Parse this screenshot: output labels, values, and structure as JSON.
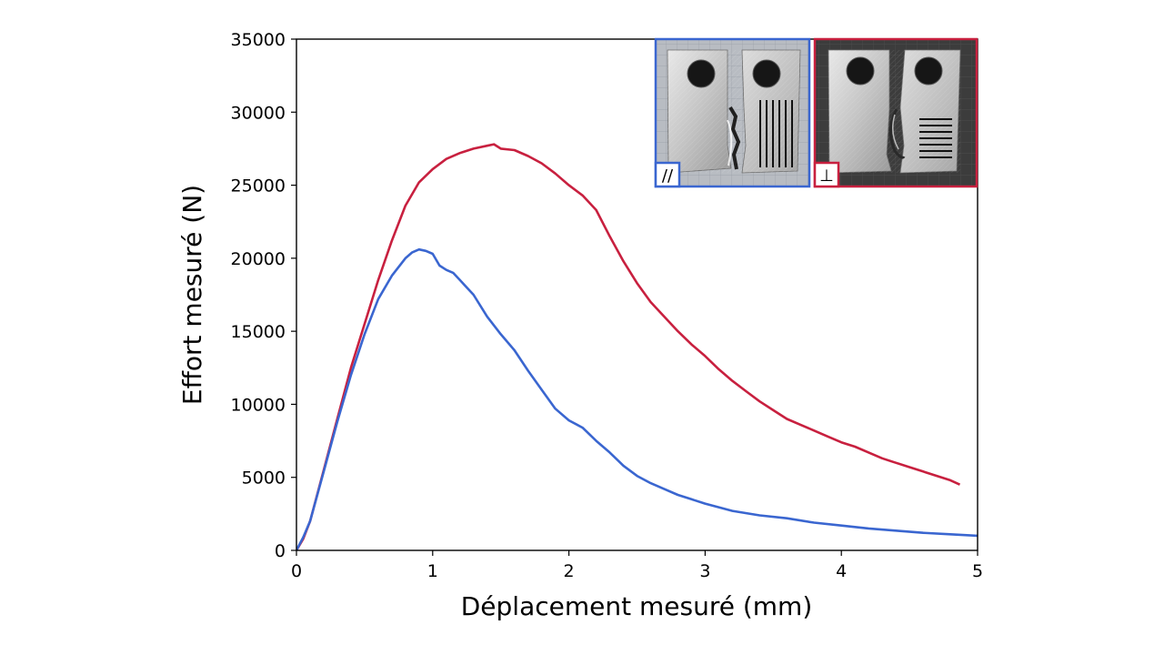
{
  "chart_data": {
    "type": "line",
    "xlabel": "Déplacement mesuré (mm)",
    "ylabel": "Effort mesuré (N)",
    "xlim": [
      0,
      5
    ],
    "ylim": [
      0,
      35000
    ],
    "x_ticks": [
      "0",
      "1",
      "2",
      "3",
      "4",
      "5"
    ],
    "y_ticks": [
      "0",
      "5000",
      "10000",
      "15000",
      "20000",
      "25000",
      "30000",
      "35000"
    ],
    "grid": false,
    "series": [
      {
        "color": "#c8203f",
        "x": [
          0,
          0.05,
          0.1,
          0.2,
          0.3,
          0.4,
          0.5,
          0.6,
          0.7,
          0.8,
          0.9,
          1.0,
          1.1,
          1.2,
          1.3,
          1.4,
          1.45,
          1.5,
          1.6,
          1.7,
          1.8,
          1.9,
          2.0,
          2.1,
          2.2,
          2.3,
          2.4,
          2.5,
          2.6,
          2.7,
          2.8,
          2.9,
          3.0,
          3.1,
          3.2,
          3.3,
          3.4,
          3.5,
          3.6,
          3.7,
          3.8,
          3.9,
          4.0,
          4.1,
          4.2,
          4.3,
          4.4,
          4.5,
          4.6,
          4.7,
          4.8,
          4.87
        ],
        "y": [
          0,
          800,
          2000,
          5500,
          9000,
          12500,
          15500,
          18500,
          21200,
          23600,
          25200,
          26100,
          26800,
          27200,
          27500,
          27700,
          27800,
          27500,
          27400,
          27000,
          26500,
          25800,
          25000,
          24300,
          23300,
          21500,
          19800,
          18300,
          17000,
          16000,
          15000,
          14100,
          13300,
          12400,
          11600,
          10900,
          10200,
          9600,
          9000,
          8600,
          8200,
          7800,
          7400,
          7100,
          6700,
          6300,
          6000,
          5700,
          5400,
          5100,
          4800,
          4500
        ]
      },
      {
        "color": "#3a66d0",
        "x": [
          0,
          0.05,
          0.1,
          0.2,
          0.3,
          0.4,
          0.5,
          0.6,
          0.7,
          0.8,
          0.85,
          0.9,
          0.95,
          1.0,
          1.05,
          1.1,
          1.15,
          1.2,
          1.3,
          1.4,
          1.5,
          1.6,
          1.7,
          1.8,
          1.9,
          2.0,
          2.1,
          2.2,
          2.3,
          2.4,
          2.5,
          2.6,
          2.7,
          2.8,
          2.9,
          3.0,
          3.2,
          3.4,
          3.6,
          3.8,
          4.0,
          4.2,
          4.4,
          4.6,
          4.8,
          5.0
        ],
        "y": [
          0,
          900,
          2000,
          5400,
          8800,
          12000,
          14800,
          17200,
          18800,
          20000,
          20400,
          20600,
          20500,
          20300,
          19500,
          19200,
          19000,
          18500,
          17500,
          16000,
          14800,
          13700,
          12300,
          11000,
          9700,
          8900,
          8400,
          7500,
          6700,
          5800,
          5100,
          4600,
          4200,
          3800,
          3500,
          3200,
          2700,
          2400,
          2200,
          1900,
          1700,
          1500,
          1350,
          1200,
          1100,
          1000
        ]
      }
    ],
    "insets": [
      {
        "label": "//",
        "border_color": "#3a66d0"
      },
      {
        "label": "⊥",
        "border_color": "#c8203f"
      }
    ]
  }
}
